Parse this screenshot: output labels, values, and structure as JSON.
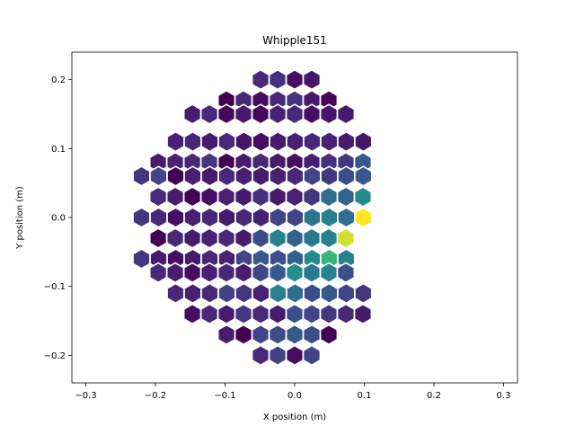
{
  "chart_data": {
    "type": "heatmap",
    "title": "Whipple151",
    "xlabel": "X position (m)",
    "ylabel": "Y position (m)",
    "xlim": [
      -0.32,
      0.32
    ],
    "ylim": [
      -0.24,
      0.24
    ],
    "xticks": [
      -0.3,
      -0.2,
      -0.1,
      0.0,
      0.1,
      0.2,
      0.3
    ],
    "xtick_labels": [
      "−0.3",
      "−0.2",
      "−0.1",
      "0.0",
      "0.1",
      "0.2",
      "0.3"
    ],
    "yticks": [
      0.2,
      0.1,
      0.0,
      -0.1,
      -0.2
    ],
    "ytick_labels": [
      "0.2",
      "0.1",
      "0.0",
      "−0.1",
      "−0.2"
    ],
    "colormap": "viridis",
    "pixel_shape": "hexagon",
    "pixel_edge_color": "#ffffff",
    "grid": false,
    "rows": [
      {
        "y": 0.2,
        "x_start": -0.049,
        "values": [
          0.15,
          0.18,
          0.05,
          0.08
        ]
      },
      {
        "y": 0.17,
        "x_start": -0.098,
        "values": [
          0.0,
          0.15,
          0.05,
          0.15,
          0.2,
          0.1,
          0.02
        ]
      },
      {
        "y": 0.15,
        "x_start": -0.147,
        "values": [
          0.1,
          0.15,
          0.03,
          0.1,
          0.02,
          0.12,
          0.15,
          0.05,
          0.08,
          0.1
        ]
      },
      {
        "y": 0.11,
        "x_start": -0.171,
        "values": [
          0.12,
          0.15,
          0.1,
          0.15,
          0.08,
          0.05,
          0.1,
          0.12,
          0.15,
          0.12,
          0.1,
          0.08
        ]
      },
      {
        "y": 0.08,
        "x_start": -0.196,
        "values": [
          0.1,
          0.12,
          0.15,
          0.2,
          0.0,
          0.1,
          0.15,
          0.1,
          0.05,
          0.12,
          0.18,
          0.2,
          0.35
        ]
      },
      {
        "y": 0.06,
        "x_start": -0.22,
        "values": [
          0.2,
          0.25,
          0.0,
          0.12,
          0.1,
          0.15,
          0.12,
          0.1,
          0.12,
          0.15,
          0.25,
          0.2,
          0.3,
          0.35
        ]
      },
      {
        "y": 0.03,
        "x_start": -0.196,
        "values": [
          0.15,
          0.1,
          -0.05,
          0.05,
          0.12,
          0.1,
          0.18,
          0.1,
          0.12,
          0.2,
          0.45,
          0.4,
          0.6
        ]
      },
      {
        "y": 0.0,
        "x_start": -0.22,
        "values": [
          0.2,
          0.15,
          0.05,
          0.12,
          0.15,
          0.1,
          0.15,
          0.12,
          0.25,
          0.25,
          0.5,
          0.55,
          0.45,
          1.0
        ]
      },
      {
        "y": -0.03,
        "x_start": -0.196,
        "values": [
          0.0,
          0.15,
          0.1,
          0.12,
          0.15,
          0.1,
          0.3,
          0.55,
          0.4,
          0.5,
          0.55,
          0.95
        ]
      },
      {
        "y": -0.06,
        "x_start": -0.22,
        "values": [
          0.2,
          0.1,
          0.05,
          0.1,
          0.15,
          0.12,
          0.25,
          0.35,
          0.3,
          0.4,
          0.6,
          0.75,
          0.55
        ]
      },
      {
        "y": -0.08,
        "x_start": -0.196,
        "values": [
          0.15,
          0.1,
          0.05,
          0.12,
          0.15,
          0.1,
          0.25,
          0.35,
          0.62,
          0.5,
          0.55,
          0.3
        ]
      },
      {
        "y": -0.11,
        "x_start": -0.171,
        "values": [
          0.15,
          0.12,
          0.15,
          0.25,
          0.2,
          0.12,
          0.55,
          0.45,
          0.3,
          0.35,
          0.25,
          0.2
        ]
      },
      {
        "y": -0.14,
        "x_start": -0.147,
        "values": [
          0.05,
          0.15,
          0.1,
          0.2,
          0.15,
          0.1,
          0.3,
          0.25,
          0.2,
          0.15,
          0.1
        ]
      },
      {
        "y": -0.17,
        "x_start": -0.098,
        "values": [
          0.1,
          0.0,
          0.25,
          0.3,
          0.35,
          0.3,
          0.0
        ]
      },
      {
        "y": -0.2,
        "x_start": -0.049,
        "values": [
          0.15,
          0.25,
          0.05,
          0.25
        ]
      }
    ]
  }
}
